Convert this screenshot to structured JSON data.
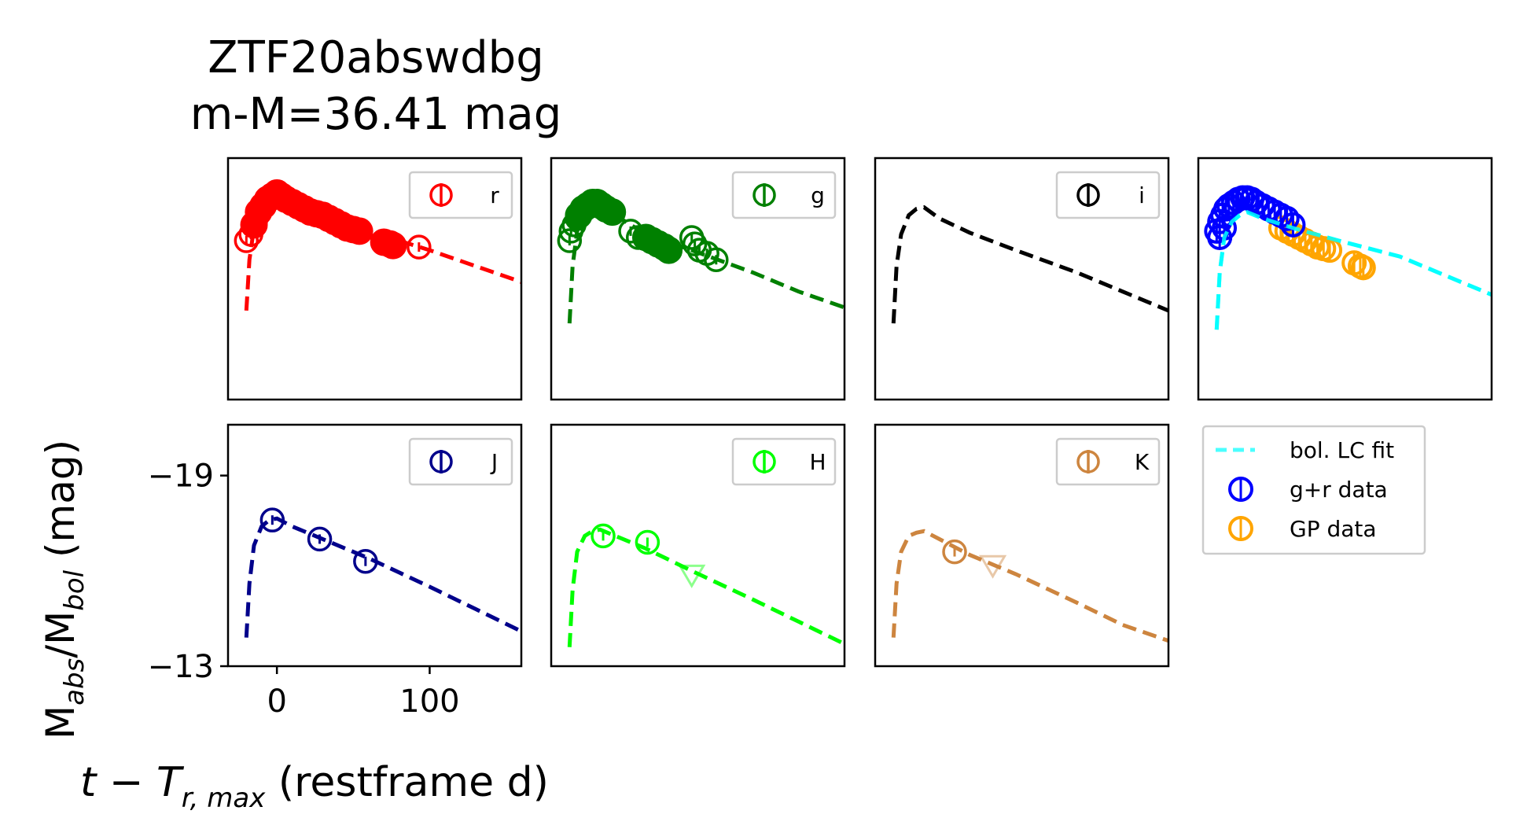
{
  "figure": {
    "title_line1": "ZTF20abswdbg",
    "title_line2": "m-M=36.41 mag"
  },
  "chart_data": {
    "type": "scatter",
    "xlabel_main": "t − T",
    "xlabel_sub": "r, max",
    "xlabel_rest": " (restframe d)",
    "ylabel_parts": [
      "M",
      "abs",
      "/M",
      "bol",
      " (mag)"
    ],
    "xlim": [
      -32,
      160
    ],
    "ylim_top": [
      -20.2,
      -12.6
    ],
    "ylim_bottom": [
      -20.6,
      -13
    ],
    "yticks": [
      {
        "value": -19,
        "label": "−19"
      },
      {
        "value": -13,
        "label": "−13"
      }
    ],
    "xticks": [
      {
        "value": 0,
        "label": "0"
      },
      {
        "value": 100,
        "label": "100"
      }
    ],
    "panels": [
      {
        "band": "r",
        "color": "#ff0000",
        "row": 0,
        "col": 0,
        "legend": "r",
        "model": [
          [
            -20,
            -15.4
          ],
          [
            -18,
            -17.0
          ],
          [
            -15,
            -18.0
          ],
          [
            -10,
            -18.6
          ],
          [
            -5,
            -18.9
          ],
          [
            0,
            -19.0
          ],
          [
            10,
            -18.8
          ],
          [
            30,
            -18.4
          ],
          [
            60,
            -17.9
          ],
          [
            100,
            -17.3
          ],
          [
            130,
            -16.8
          ],
          [
            160,
            -16.3
          ]
        ],
        "filled": [
          [
            -15,
            -18.1
          ],
          [
            -12,
            -18.5
          ],
          [
            -9,
            -18.7
          ],
          [
            -6,
            -18.9
          ],
          [
            -3,
            -19.0
          ],
          [
            0,
            -19.1
          ],
          [
            3,
            -19.0
          ],
          [
            6,
            -18.9
          ],
          [
            10,
            -18.8
          ],
          [
            14,
            -18.7
          ],
          [
            18,
            -18.6
          ],
          [
            22,
            -18.5
          ],
          [
            26,
            -18.45
          ],
          [
            30,
            -18.4
          ],
          [
            34,
            -18.3
          ],
          [
            38,
            -18.2
          ],
          [
            42,
            -18.1
          ],
          [
            46,
            -18.0
          ],
          [
            50,
            -17.95
          ],
          [
            54,
            -17.9
          ],
          [
            70,
            -17.55
          ],
          [
            74,
            -17.5
          ],
          [
            76,
            -17.45
          ]
        ],
        "open": [
          [
            -20,
            -17.6
          ],
          [
            -17,
            -17.8
          ],
          [
            -14,
            -18.2
          ],
          [
            93,
            -17.4
          ]
        ],
        "upper_limits": []
      },
      {
        "band": "g",
        "color": "#008000",
        "row": 0,
        "col": 1,
        "legend": "g",
        "model": [
          [
            -20,
            -15.0
          ],
          [
            -18,
            -16.8
          ],
          [
            -15,
            -17.9
          ],
          [
            -10,
            -18.5
          ],
          [
            -5,
            -18.7
          ],
          [
            0,
            -18.75
          ],
          [
            10,
            -18.4
          ],
          [
            30,
            -17.8
          ],
          [
            60,
            -17.3
          ],
          [
            100,
            -16.6
          ],
          [
            130,
            -16.0
          ],
          [
            160,
            -15.5
          ]
        ],
        "filled": [
          [
            -14,
            -18.4
          ],
          [
            -11,
            -18.6
          ],
          [
            -8,
            -18.7
          ],
          [
            -5,
            -18.8
          ],
          [
            -2,
            -18.8
          ],
          [
            1,
            -18.7
          ],
          [
            4,
            -18.6
          ],
          [
            8,
            -18.5
          ],
          [
            30,
            -17.7
          ],
          [
            34,
            -17.6
          ],
          [
            38,
            -17.5
          ],
          [
            42,
            -17.4
          ],
          [
            45,
            -17.3
          ]
        ],
        "open": [
          [
            -20,
            -17.6
          ],
          [
            -19,
            -17.9
          ],
          [
            -17,
            -18.1
          ],
          [
            -15,
            -18.3
          ],
          [
            20,
            -17.9
          ],
          [
            25,
            -17.7
          ],
          [
            60,
            -17.7
          ],
          [
            62,
            -17.5
          ],
          [
            65,
            -17.3
          ],
          [
            70,
            -17.2
          ],
          [
            76,
            -17.0
          ]
        ],
        "upper_limits": []
      },
      {
        "band": "i",
        "color": "#000000",
        "row": 0,
        "col": 2,
        "legend": "i",
        "model": [
          [
            -20,
            -15.0
          ],
          [
            -18,
            -16.8
          ],
          [
            -15,
            -17.8
          ],
          [
            -10,
            -18.4
          ],
          [
            -5,
            -18.6
          ],
          [
            0,
            -18.65
          ],
          [
            10,
            -18.3
          ],
          [
            30,
            -17.85
          ],
          [
            60,
            -17.3
          ],
          [
            100,
            -16.6
          ],
          [
            130,
            -16.0
          ],
          [
            160,
            -15.4
          ]
        ],
        "filled": [],
        "open": [],
        "upper_limits": []
      },
      {
        "band": "bol",
        "color": "#00ffff",
        "row": 0,
        "col": 3,
        "legend": "",
        "model": [
          [
            -20,
            -14.8
          ],
          [
            -18,
            -16.6
          ],
          [
            -15,
            -17.7
          ],
          [
            -10,
            -18.2
          ],
          [
            -5,
            -18.4
          ],
          [
            0,
            -18.5
          ],
          [
            10,
            -18.3
          ],
          [
            30,
            -18.0
          ],
          [
            60,
            -17.6
          ],
          [
            100,
            -17.1
          ],
          [
            130,
            -16.5
          ],
          [
            160,
            -15.9
          ]
        ],
        "series_gr": [
          [
            -20,
            -17.9
          ],
          [
            -18,
            -18.2
          ],
          [
            -16,
            -18.4
          ],
          [
            -14,
            -18.6
          ],
          [
            -12,
            -18.7
          ],
          [
            -9,
            -18.8
          ],
          [
            -6,
            -18.9
          ],
          [
            -3,
            -18.95
          ],
          [
            0,
            -18.95
          ],
          [
            3,
            -18.9
          ],
          [
            6,
            -18.8
          ],
          [
            10,
            -18.7
          ],
          [
            14,
            -18.6
          ],
          [
            18,
            -18.5
          ],
          [
            22,
            -18.4
          ],
          [
            26,
            -18.3
          ],
          [
            30,
            -18.1
          ],
          [
            -18,
            -17.7
          ],
          [
            -15,
            -18.0
          ]
        ],
        "series_gp": [
          [
            22,
            -18.0
          ],
          [
            26,
            -17.9
          ],
          [
            30,
            -17.8
          ],
          [
            34,
            -17.7
          ],
          [
            38,
            -17.6
          ],
          [
            42,
            -17.5
          ],
          [
            46,
            -17.4
          ],
          [
            50,
            -17.35
          ],
          [
            54,
            -17.3
          ],
          [
            70,
            -16.9
          ],
          [
            74,
            -16.8
          ],
          [
            76,
            -16.75
          ]
        ],
        "open": [],
        "upper_limits": []
      },
      {
        "band": "J",
        "color": "#00008b",
        "row": 1,
        "col": 0,
        "legend": "J",
        "model": [
          [
            -20,
            -13.9
          ],
          [
            -18,
            -15.6
          ],
          [
            -15,
            -16.8
          ],
          [
            -10,
            -17.4
          ],
          [
            -5,
            -17.6
          ],
          [
            0,
            -17.65
          ],
          [
            10,
            -17.4
          ],
          [
            30,
            -17.0
          ],
          [
            60,
            -16.4
          ],
          [
            100,
            -15.5
          ],
          [
            130,
            -14.8
          ],
          [
            160,
            -14.1
          ]
        ],
        "filled": [],
        "open": [
          [
            -3,
            -17.6
          ],
          [
            28,
            -17.0
          ],
          [
            58,
            -16.3
          ]
        ],
        "upper_limits": []
      },
      {
        "band": "H",
        "color": "#00ff00",
        "row": 1,
        "col": 1,
        "legend": "H",
        "model": [
          [
            -20,
            -13.6
          ],
          [
            -18,
            -15.4
          ],
          [
            -15,
            -16.6
          ],
          [
            -10,
            -17.1
          ],
          [
            -5,
            -17.25
          ],
          [
            0,
            -17.3
          ],
          [
            10,
            -17.1
          ],
          [
            30,
            -16.7
          ],
          [
            60,
            -16.0
          ],
          [
            100,
            -15.1
          ],
          [
            130,
            -14.4
          ],
          [
            160,
            -13.7
          ]
        ],
        "filled": [],
        "open": [
          [
            2,
            -17.1
          ],
          [
            31,
            -16.9
          ]
        ],
        "upper_limits": [
          [
            60,
            -15.9
          ]
        ]
      },
      {
        "band": "K",
        "color": "#cd853f",
        "row": 1,
        "col": 2,
        "legend": "K",
        "model": [
          [
            -20,
            -13.9
          ],
          [
            -18,
            -15.6
          ],
          [
            -15,
            -16.6
          ],
          [
            -10,
            -17.1
          ],
          [
            -5,
            -17.2
          ],
          [
            0,
            -17.25
          ],
          [
            10,
            -17.0
          ],
          [
            30,
            -16.5
          ],
          [
            60,
            -15.9
          ],
          [
            100,
            -15.0
          ],
          [
            130,
            -14.3
          ],
          [
            160,
            -13.8
          ]
        ],
        "filled": [],
        "open": [
          [
            20,
            -16.6
          ]
        ],
        "upper_limits": [
          [
            45,
            -16.2
          ]
        ]
      }
    ],
    "side_legend": [
      {
        "label": "bol. LC fit",
        "color": "#00ffff",
        "kind": "dash"
      },
      {
        "label": "g+r data",
        "color": "#0000ff",
        "kind": "marker"
      },
      {
        "label": "GP data",
        "color": "#ffa500",
        "kind": "marker"
      }
    ]
  }
}
